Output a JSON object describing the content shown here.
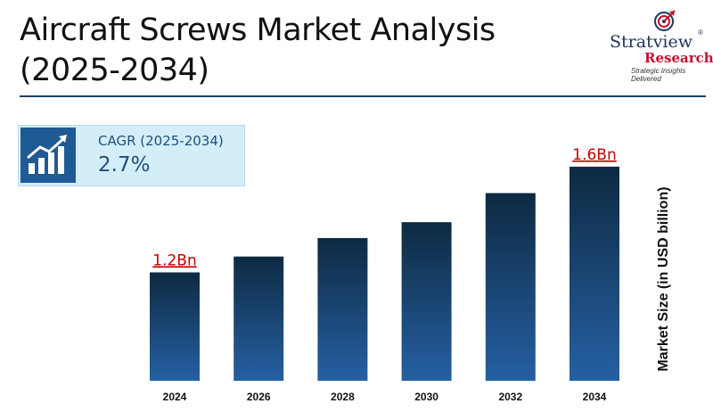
{
  "header": {
    "title": "Aircraft Screws Market Analysis (2025-2034)"
  },
  "logo": {
    "name": "Stratview",
    "registered": "®",
    "sub": "Research",
    "tagline": "Strategic Insights Delivered",
    "icon": "target-arrow-icon"
  },
  "cagr": {
    "label": "CAGR (2025-2034)",
    "value": "2.7%",
    "icon": "growth-chart-icon"
  },
  "colors": {
    "bar_top": "#0e2a42",
    "bar_bottom": "#2560a3",
    "value_label": "#c00000",
    "accent": "#1f3e63"
  },
  "chart_data": {
    "type": "bar",
    "title": "Aircraft Screws Market Analysis (2025-2034)",
    "ylabel": "Market Size (in USD billion)",
    "xlabel": "",
    "categories": [
      "2024",
      "2026",
      "2028",
      "2030",
      "2032",
      "2034"
    ],
    "values": [
      1.2,
      1.26,
      1.33,
      1.39,
      1.5,
      1.6
    ],
    "data_labels": [
      "1.2Bn",
      "",
      "",
      "",
      "",
      "1.6Bn"
    ],
    "ylim": [
      0.79,
      1.63
    ],
    "grid": false,
    "legend": "none"
  }
}
